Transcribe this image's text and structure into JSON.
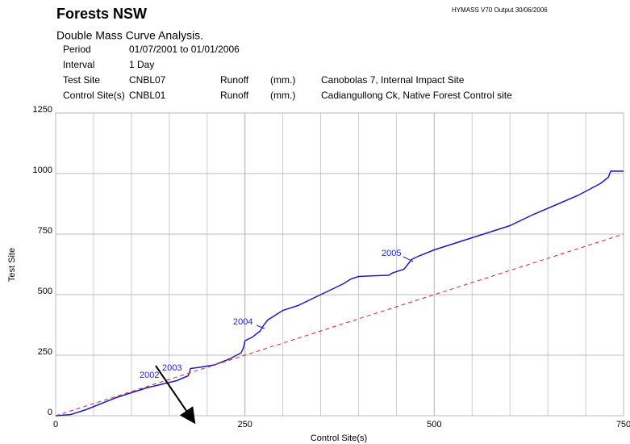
{
  "header": {
    "title": "Forests NSW",
    "version": "HYMASS V70  Output 30/06/2006",
    "subtitle": "Double Mass Curve Analysis.",
    "rows": [
      [
        "Period",
        "01/07/2001 to 01/01/2006"
      ],
      [
        "Interval",
        "1 Day"
      ],
      [
        "Test Site",
        "CNBL07",
        "Runoff",
        "(mm.)",
        "Canobolas 7, Internal Impact Site"
      ],
      [
        "Control Site(s)",
        "CNBL01",
        "Runoff",
        "(mm.)",
        "Cadiangullong Ck, Native Forest Control site"
      ]
    ]
  },
  "chart_data": {
    "type": "line",
    "x_label": "Control Site(s)",
    "y_label": "Test Site",
    "xlim": [
      0,
      750
    ],
    "ylim": [
      0,
      1250
    ],
    "xticks": [
      0,
      250,
      500,
      750
    ],
    "yticks": [
      0,
      250,
      500,
      750,
      1000,
      1250
    ],
    "grid": true,
    "series": [
      {
        "color": "#1a1ad0",
        "x": [
          0,
          20,
          40,
          60,
          80,
          100,
          120,
          140,
          160,
          175,
          177,
          178,
          190,
          210,
          230,
          245,
          248,
          250,
          260,
          270,
          275,
          280,
          290,
          300,
          320,
          340,
          360,
          380,
          390,
          400,
          420,
          440,
          445,
          460,
          465,
          470,
          480,
          500,
          520,
          540,
          560,
          580,
          600,
          630,
          660,
          690,
          720,
          730,
          733,
          750
        ],
        "values": [
          0,
          5,
          25,
          50,
          75,
          95,
          115,
          130,
          145,
          165,
          180,
          195,
          200,
          210,
          235,
          260,
          280,
          310,
          325,
          350,
          375,
          395,
          415,
          435,
          455,
          485,
          515,
          545,
          565,
          575,
          578,
          580,
          590,
          605,
          625,
          645,
          660,
          685,
          705,
          725,
          745,
          765,
          785,
          830,
          870,
          910,
          960,
          985,
          1010,
          1010
        ]
      },
      {
        "color": "#e02020",
        "x": [
          0,
          750
        ],
        "values": [
          0,
          750
        ]
      }
    ],
    "annotations": [
      "2002",
      "2003",
      "2004",
      "2005"
    ]
  }
}
